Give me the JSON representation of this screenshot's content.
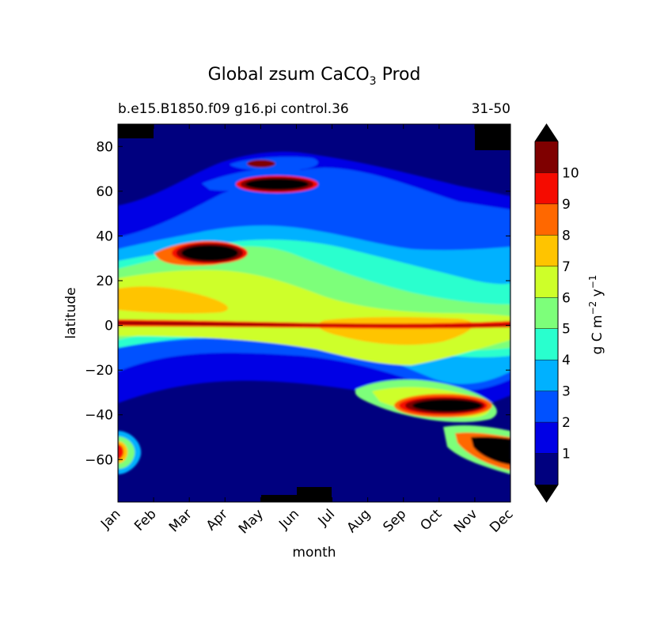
{
  "chart_data": {
    "type": "contourf",
    "title_main": "Global zsum CaCO",
    "title_sub": "3",
    "title_tail": "Prod",
    "subtitle_left": "b.e15.B1850.f09 g16.pi control.36",
    "subtitle_right": "31-50",
    "xlabel": "month",
    "ylabel": "latitude",
    "x_categories": [
      "Jan",
      "Feb",
      "Mar",
      "Apr",
      "May",
      "Jun",
      "Jul",
      "Aug",
      "Sep",
      "Oct",
      "Nov",
      "Dec"
    ],
    "ylim": [
      -79,
      90
    ],
    "yticks": [
      -60,
      -40,
      -20,
      0,
      20,
      40,
      60,
      80
    ],
    "yticks_labels": [
      "−60",
      "−40",
      "−20",
      "0",
      "20",
      "40",
      "60",
      "80"
    ],
    "colorbar": {
      "label_main": "g C m",
      "label_exp1": "−2",
      "label_mid": " y",
      "label_exp2": "−1",
      "levels": [
        1,
        2,
        3,
        4,
        5,
        6,
        7,
        8,
        9,
        10
      ],
      "tick_labels": [
        "1",
        "2",
        "3",
        "4",
        "5",
        "6",
        "7",
        "8",
        "9",
        "10"
      ],
      "band_colors": [
        "#00007f",
        "#0000e5",
        "#0051ff",
        "#00b1ff",
        "#29ffce",
        "#7dff7a",
        "#ceff29",
        "#ffc400",
        "#ff6800",
        "#f50b00",
        "#7f0000"
      ],
      "under_color": "#000000",
      "over_color": "#000000"
    },
    "features": [
      {
        "month": 4.0,
        "lat": 71,
        "value": 10
      },
      {
        "month": 4.0,
        "lat": 62,
        "value": 11
      },
      {
        "month": 2.6,
        "lat": 31,
        "value": 11
      },
      {
        "month": 9.5,
        "lat": -36,
        "value": 11
      },
      {
        "month": 11.0,
        "lat": -56,
        "value": 11
      },
      {
        "month": 6.0,
        "lat": 0,
        "value": 9
      },
      {
        "month": 1.5,
        "lat": 12,
        "value": 7
      }
    ]
  }
}
